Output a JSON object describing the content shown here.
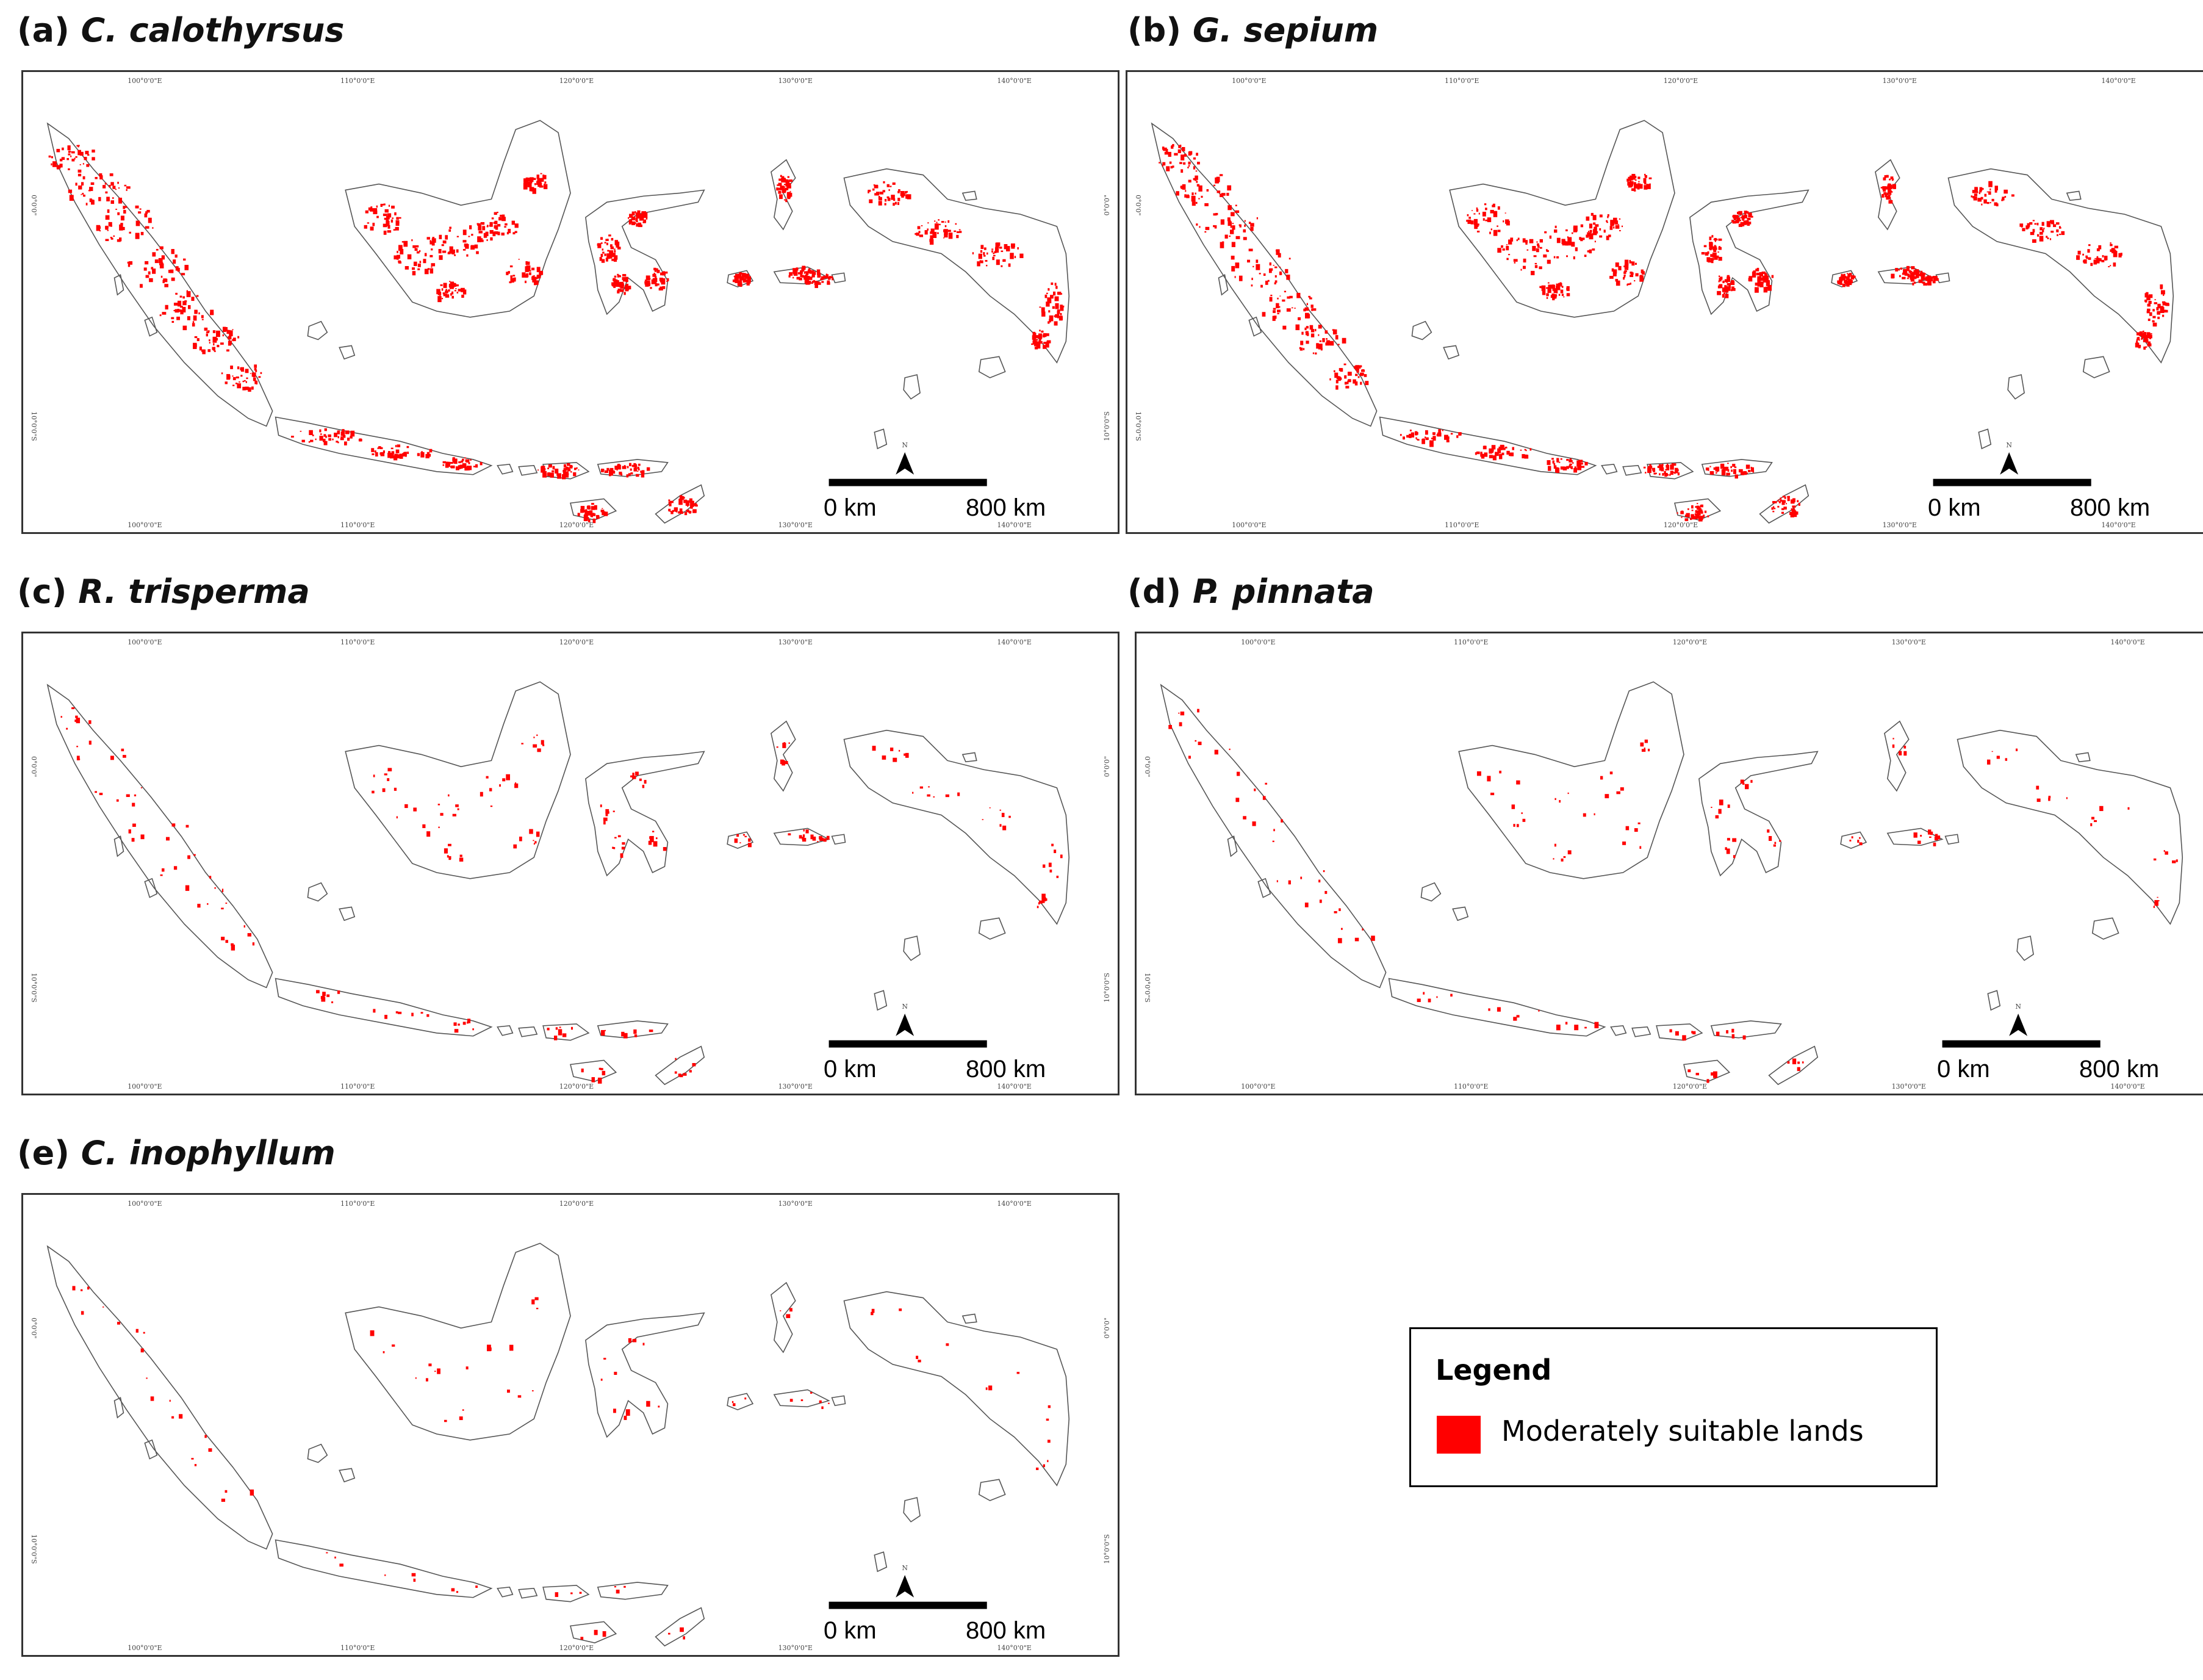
{
  "panels": [
    {
      "title_prefix": "(a)",
      "title_species": "C. calothyrsus",
      "density": 1.0
    },
    {
      "title_prefix": "(b)",
      "title_species": "G. sepium",
      "density": 0.95
    },
    {
      "title_prefix": "(c)",
      "title_species": "R. trisperma",
      "density": 0.18
    },
    {
      "title_prefix": "(d)",
      "title_species": "P. pinnata",
      "density": 0.12
    },
    {
      "title_prefix": "(e)",
      "title_species": "C. inophyllum",
      "density": 0.07
    }
  ],
  "axes": {
    "lon_labels": [
      "100°0'0\"E",
      "110°0'0\"E",
      "120°0'0\"E",
      "130°0'0\"E",
      "140°0'0\"E"
    ],
    "lat_labels": [
      "0°0'0\"",
      "10°0'0\"S"
    ]
  },
  "scale_bar": {
    "start_label": "0 km",
    "end_label": "800 km",
    "north_label": "N"
  },
  "legend": {
    "title": "Legend",
    "items": [
      {
        "label": "Moderately suitable lands",
        "color": "#ff0000"
      }
    ]
  },
  "colors": {
    "suitable": "#ff0000",
    "coastline": "#555555"
  }
}
